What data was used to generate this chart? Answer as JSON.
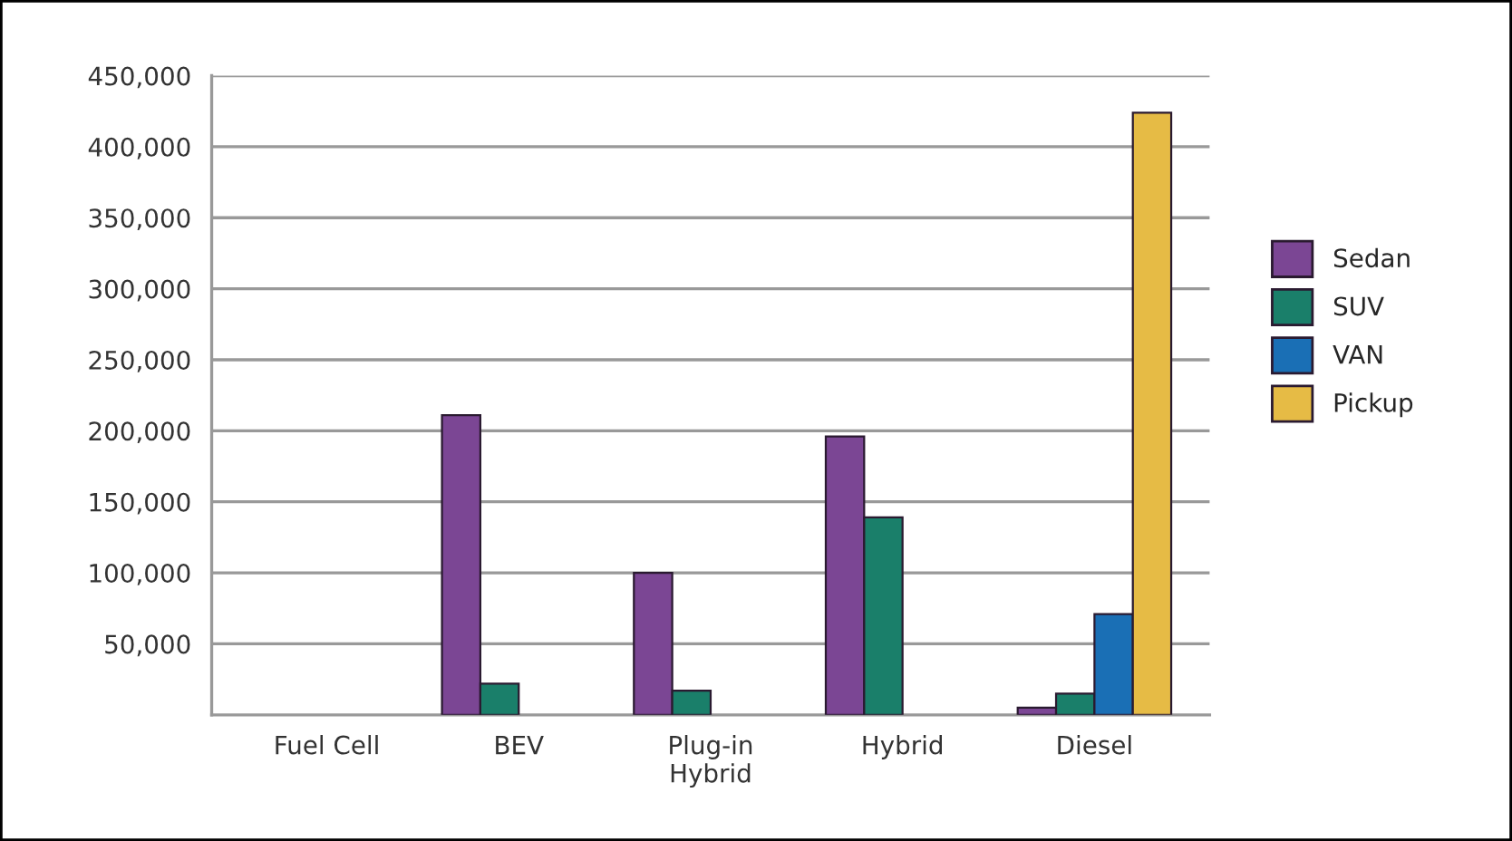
{
  "chart_data": {
    "type": "bar",
    "categories": [
      "Fuel Cell",
      "BEV",
      "Plug-in\nHybrid",
      "Hybrid",
      "Diesel"
    ],
    "series": [
      {
        "name": "Sedan",
        "color": "#7b4694",
        "values": [
          null,
          211000,
          100000,
          196000,
          5000
        ]
      },
      {
        "name": "SUV",
        "color": "#1a7f6a",
        "values": [
          null,
          22000,
          17000,
          139000,
          15000
        ]
      },
      {
        "name": "VAN",
        "color": "#1a6fb5",
        "values": [
          null,
          null,
          null,
          null,
          71000
        ]
      },
      {
        "name": "Pickup",
        "color": "#e6bb45",
        "values": [
          null,
          null,
          null,
          null,
          424000
        ]
      }
    ],
    "ylim": [
      0,
      450000
    ],
    "yticks": [
      {
        "value": 50000,
        "label": "50,000"
      },
      {
        "value": 100000,
        "label": "100,000"
      },
      {
        "value": 150000,
        "label": "150,000"
      },
      {
        "value": 200000,
        "label": "200,000"
      },
      {
        "value": 250000,
        "label": "250,000"
      },
      {
        "value": 300000,
        "label": "300,000"
      },
      {
        "value": 350000,
        "label": "350,000"
      },
      {
        "value": 400000,
        "label": "400,000"
      },
      {
        "value": 450000,
        "label": "450,000"
      }
    ],
    "grid": "y",
    "legend": "right"
  }
}
